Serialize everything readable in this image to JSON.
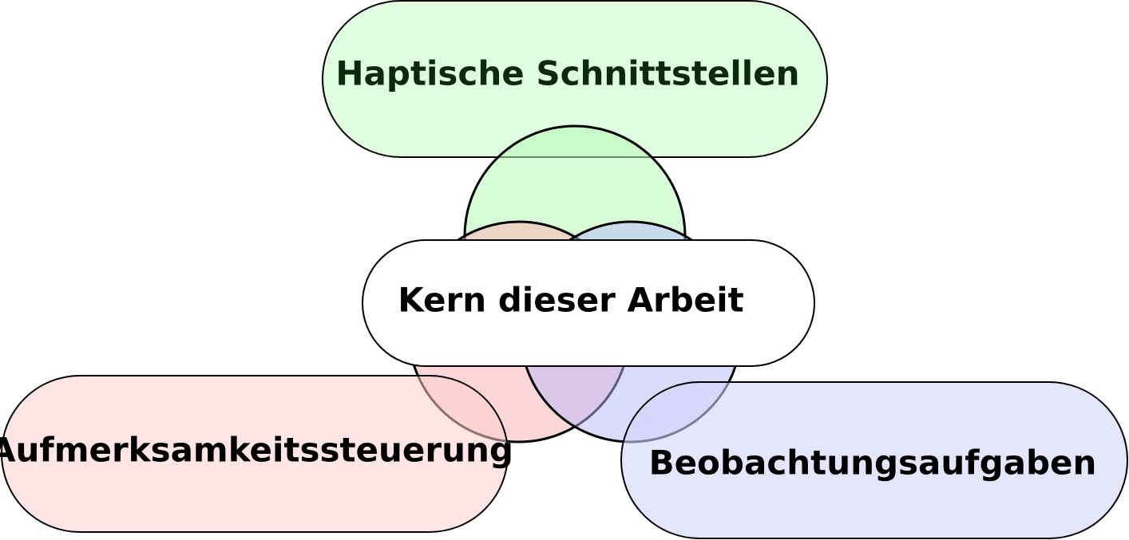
{
  "diagram": {
    "labels": {
      "haptic": "Haptische Schnittstellen",
      "core": "Kern dieser Arbeit",
      "attention": "Aufmerksamkeitssteuerung",
      "observation": "Beobachtungsaufgaben"
    },
    "colors": {
      "haptic_fill": "#e0fde0",
      "haptic_text": "#0b2a0b",
      "circle_green": "#c6f9c6",
      "circle_red": "#fcbcbc",
      "circle_blue": "#c4c4fb",
      "attention_fill": "#fde3e3",
      "observation_fill": "#e3e3fd",
      "core_fill": "#ffffff",
      "stroke": "#000000",
      "text": "#000000"
    }
  }
}
